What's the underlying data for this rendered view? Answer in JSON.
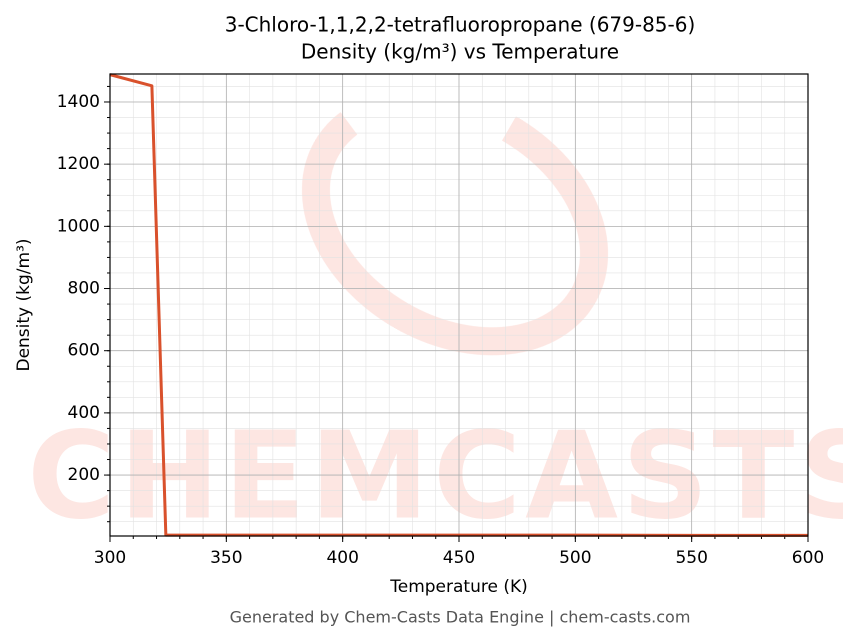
{
  "chart_data": {
    "type": "line",
    "title": "3-Chloro-1,1,2,2-tetrafluoropropane (679-85-6)",
    "subtitle": "Density (kg/m³) vs Temperature",
    "x_label": "Temperature (K)",
    "y_label": "Density (kg/m³)",
    "footer": "Generated by Chem-Casts Data Engine | chem-casts.com",
    "watermark": "CHEMCASTS",
    "x": [
      300,
      318,
      324,
      350,
      400,
      450,
      500,
      550,
      600
    ],
    "series": [
      {
        "name": "Density",
        "color": "#d9512c",
        "values": [
          1488,
          1452,
          7,
          7,
          7,
          7,
          7,
          6,
          6
        ]
      }
    ],
    "xlim": [
      300,
      600
    ],
    "xticks": [
      300,
      350,
      400,
      450,
      500,
      550,
      600
    ],
    "ylim": [
      4,
      1490
    ],
    "yticks": [
      200,
      400,
      600,
      800,
      1000,
      1200,
      1400
    ],
    "grid": true
  }
}
